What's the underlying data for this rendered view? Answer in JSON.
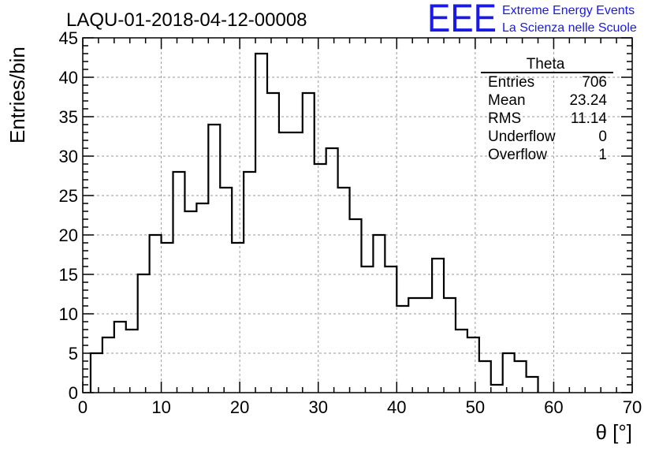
{
  "chart_data": {
    "type": "bar",
    "title": "LAQU-01-2018-04-12-00008",
    "xlabel": "θ [°]",
    "ylabel": "Entries/bin",
    "xlim": [
      0,
      70
    ],
    "ylim": [
      0,
      45
    ],
    "xticks": [
      "0",
      "10",
      "20",
      "30",
      "40",
      "50",
      "60",
      "70"
    ],
    "yticks": [
      "0",
      "5",
      "10",
      "15",
      "20",
      "25",
      "30",
      "35",
      "40",
      "45"
    ],
    "grid": true,
    "bin_width": 1.5,
    "bin_start": 1,
    "values": [
      5,
      7,
      9,
      8,
      15,
      20,
      19,
      28,
      23,
      24,
      34,
      26,
      19,
      28,
      43,
      38,
      33,
      33,
      38,
      29,
      31,
      26,
      22,
      16,
      20,
      16,
      11,
      12,
      12,
      17,
      12,
      8,
      7,
      4,
      1,
      5,
      4,
      2
    ],
    "stats": {
      "title": "Theta",
      "rows": [
        {
          "label": "Entries",
          "value": "706"
        },
        {
          "label": "Mean",
          "value": "23.24"
        },
        {
          "label": "RMS",
          "value": "11.14"
        },
        {
          "label": "Underflow",
          "value": "0"
        },
        {
          "label": "Overflow",
          "value": "1"
        }
      ]
    }
  },
  "logo": {
    "mark": "EEE",
    "line1": "Extreme Energy Events",
    "line2": "La Scienza nelle Scuole",
    "color": "#1a1ae6"
  }
}
